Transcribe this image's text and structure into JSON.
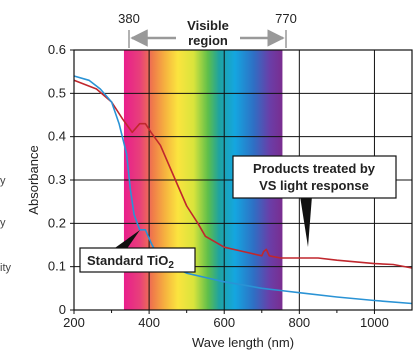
{
  "side_text": [
    "y",
    "y",
    "ity"
  ],
  "chart_data": {
    "type": "line",
    "xlabel": "Wave length (nm)",
    "ylabel": "Absorbance",
    "xlim": [
      200,
      1100
    ],
    "ylim": [
      0,
      0.6
    ],
    "xticks": [
      200,
      400,
      600,
      800,
      1000
    ],
    "yticks": [
      0,
      0.1,
      0.2,
      0.3,
      0.4,
      0.5,
      0.6
    ],
    "tick_labels_x": [
      "200",
      "400",
      "600",
      "800",
      "1000"
    ],
    "tick_labels_y": [
      "0",
      "0.1",
      "0.2",
      "0.3",
      "0.4",
      "0.5",
      "0.6"
    ],
    "grid": true,
    "visible_band": {
      "start": 380,
      "end": 770,
      "start_label": "380",
      "end_label": "770",
      "label": "Visible region"
    },
    "series": [
      {
        "name": "Products treated by VS light response",
        "color": "#c0272d",
        "x": [
          200,
          260,
          300,
          330,
          355,
          375,
          390,
          405,
          430,
          470,
          500,
          530,
          550,
          580,
          600,
          650,
          700,
          705,
          712,
          720,
          750,
          800,
          850,
          900,
          1000,
          1050,
          1100
        ],
        "y": [
          0.53,
          0.51,
          0.48,
          0.44,
          0.41,
          0.43,
          0.43,
          0.41,
          0.38,
          0.3,
          0.24,
          0.2,
          0.17,
          0.155,
          0.145,
          0.135,
          0.125,
          0.135,
          0.14,
          0.125,
          0.12,
          0.12,
          0.12,
          0.115,
          0.107,
          0.105,
          0.097
        ]
      },
      {
        "name": "Standard TiO2",
        "color": "#2a93d5",
        "x": [
          200,
          240,
          270,
          300,
          320,
          340,
          350,
          360,
          375,
          390,
          405,
          420,
          450,
          500,
          550,
          600,
          650,
          700,
          750,
          800,
          900,
          1000,
          1100
        ],
        "y": [
          0.54,
          0.53,
          0.51,
          0.48,
          0.43,
          0.36,
          0.28,
          0.22,
          0.185,
          0.185,
          0.155,
          0.13,
          0.105,
          0.085,
          0.075,
          0.065,
          0.058,
          0.05,
          0.045,
          0.04,
          0.03,
          0.022,
          0.015
        ]
      }
    ],
    "annotations": [
      {
        "text_lines": [
          "Products treated by",
          "VS light response"
        ],
        "series": 0
      },
      {
        "text": "Standard TiO",
        "subscript": "2",
        "series": 1
      }
    ]
  }
}
